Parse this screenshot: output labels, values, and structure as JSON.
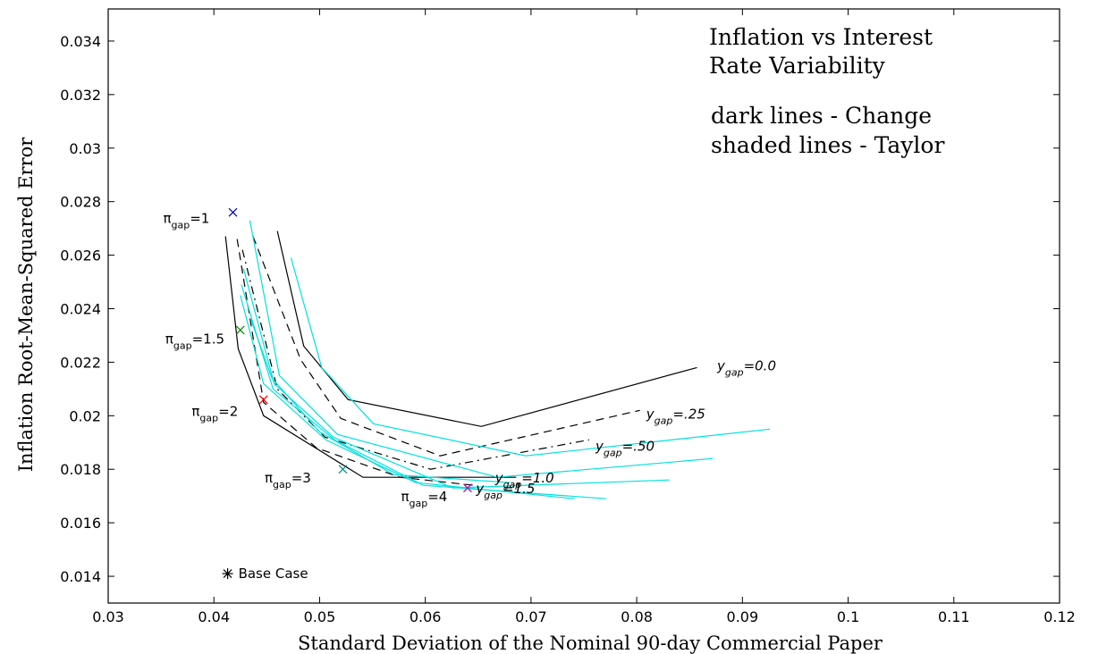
{
  "chart_data": {
    "type": "line",
    "xlabel": "Standard Deviation of the Nominal 90-day Commercial Paper",
    "ylabel": "Inflation Root-Mean-Squared Error",
    "xlim": [
      0.03,
      0.12
    ],
    "ylim": [
      0.013,
      0.0352
    ],
    "xticks": [
      0.03,
      0.04,
      0.05,
      0.06,
      0.07,
      0.08,
      0.09,
      0.1,
      0.11,
      0.12
    ],
    "xtick_labels": [
      "0.03",
      "0.04",
      "0.05",
      "0.06",
      "0.07",
      "0.08",
      "0.09",
      "0.1",
      "0.11",
      "0.12"
    ],
    "yticks": [
      0.014,
      0.016,
      0.018,
      0.02,
      0.022,
      0.024,
      0.026,
      0.028,
      0.03,
      0.032,
      0.034
    ],
    "ytick_labels": [
      "0.014",
      "0.016",
      "0.018",
      "0.02",
      "0.022",
      "0.024",
      "0.026",
      "0.028",
      "0.03",
      "0.032",
      "0.034"
    ],
    "grid": false,
    "notes": {
      "title_line1": "Inflation vs Interest",
      "title_line2": "Rate Variability",
      "legend_line1": "dark lines - Change",
      "legend_line2": "shaded lines - Taylor"
    },
    "series_style": {
      "dark_color": "#000000",
      "shaded_color": "#00e0e0"
    },
    "series": [
      {
        "style": "dark-solid",
        "x": [
          0.046,
          0.0485,
          0.0527,
          0.0653,
          0.0857
        ],
        "y": [
          0.0269,
          0.0226,
          0.0206,
          0.0196,
          0.0218
        ]
      },
      {
        "style": "dark-dashed",
        "x": [
          0.0437,
          0.0482,
          0.052,
          0.0614,
          0.0803
        ],
        "y": [
          0.0267,
          0.0221,
          0.0199,
          0.0185,
          0.0202
        ]
      },
      {
        "style": "dark-dashdot",
        "x": [
          0.0427,
          0.046,
          0.0505,
          0.0605,
          0.0755
        ],
        "y": [
          0.0262,
          0.021,
          0.0192,
          0.018,
          0.0191
        ]
      },
      {
        "style": "dark-dashed",
        "x": [
          0.0422,
          0.0447,
          0.0497,
          0.0576,
          0.0646
        ],
        "y": [
          0.0266,
          0.0205,
          0.0188,
          0.0177,
          0.0174
        ]
      },
      {
        "style": "dark-solid",
        "x": [
          0.0411,
          0.0423,
          0.0447,
          0.0541,
          0.0686
        ],
        "y": [
          0.0267,
          0.0225,
          0.02,
          0.0177,
          0.0177
        ]
      },
      {
        "style": "shaded",
        "x": [
          0.0473,
          0.0502,
          0.0551,
          0.0695,
          0.0926
        ],
        "y": [
          0.0259,
          0.0218,
          0.0197,
          0.0185,
          0.0195
        ]
      },
      {
        "style": "shaded",
        "x": [
          0.0434,
          0.0462,
          0.0517,
          0.0668,
          0.0872
        ],
        "y": [
          0.0273,
          0.0215,
          0.0193,
          0.0177,
          0.0184
        ]
      },
      {
        "style": "shaded",
        "x": [
          0.0428,
          0.0457,
          0.0513,
          0.0626,
          0.0831
        ],
        "y": [
          0.0255,
          0.0212,
          0.0192,
          0.0173,
          0.0176
        ]
      },
      {
        "style": "shaded",
        "x": [
          0.0426,
          0.0456,
          0.0514,
          0.0598,
          0.0771
        ],
        "y": [
          0.0249,
          0.021,
          0.0191,
          0.0174,
          0.0169
        ]
      },
      {
        "style": "shaded",
        "x": [
          0.0425,
          0.0447,
          0.0506,
          0.0591,
          0.0741
        ],
        "y": [
          0.0245,
          0.0212,
          0.0191,
          0.0175,
          0.0169
        ]
      },
      {
        "style": "shaded",
        "x": [
          0.0435,
          0.0455,
          0.05,
          0.057,
          0.068
        ],
        "y": [
          0.0236,
          0.0214,
          0.0194,
          0.0178,
          0.0175
        ]
      }
    ],
    "markers": [
      {
        "symbol": "x",
        "color": "#0000cc",
        "x": 0.0418,
        "y": 0.0276
      },
      {
        "symbol": "x",
        "color": "#008800",
        "x": 0.0425,
        "y": 0.0232
      },
      {
        "symbol": "x",
        "color": "#dd0000",
        "x": 0.0447,
        "y": 0.0206
      },
      {
        "symbol": "x",
        "color": "#008888",
        "x": 0.0522,
        "y": 0.018
      },
      {
        "symbol": "x",
        "color": "#aa00aa",
        "x": 0.064,
        "y": 0.0173
      },
      {
        "symbol": "*",
        "color": "#000000",
        "x": 0.0413,
        "y": 0.0141
      }
    ],
    "pi_labels": [
      {
        "base": "π",
        "sub": "gap",
        "value": "=1",
        "x": 0.0352,
        "y": 0.0272
      },
      {
        "base": "π",
        "sub": "gap",
        "value": "=1.5",
        "x": 0.0354,
        "y": 0.0227
      },
      {
        "base": "π",
        "sub": "gap",
        "value": "=2",
        "x": 0.0379,
        "y": 0.02
      },
      {
        "base": "π",
        "sub": "gap",
        "value": "=3",
        "x": 0.0448,
        "y": 0.0175
      },
      {
        "base": "π",
        "sub": "gap",
        "value": "=4",
        "x": 0.0577,
        "y": 0.0168
      }
    ],
    "y_labels": [
      {
        "base": "y",
        "sub": "gap",
        "value": "=0.0",
        "x": 0.0876,
        "y": 0.0217
      },
      {
        "base": "y",
        "sub": "gap",
        "value": "=.25",
        "x": 0.0809,
        "y": 0.0199
      },
      {
        "base": "y",
        "sub": "gap",
        "value": "=.50",
        "x": 0.0761,
        "y": 0.0187
      },
      {
        "base": "y",
        "sub": "gap",
        "value": "=1.0",
        "x": 0.0666,
        "y": 0.0175
      },
      {
        "base": "y",
        "sub": "gap",
        "value": "=1.5",
        "x": 0.0648,
        "y": 0.0171
      }
    ],
    "base_case_label": "Base Case"
  }
}
